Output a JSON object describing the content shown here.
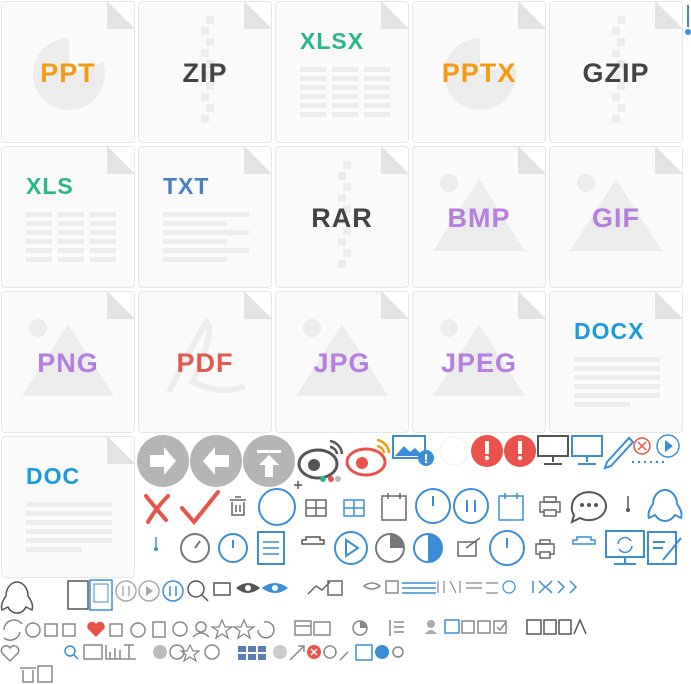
{
  "file_tiles": [
    {
      "label": "PPT",
      "color": "#f39c12",
      "art": "pie"
    },
    {
      "label": "ZIP",
      "color": "#444444",
      "art": "zip"
    },
    {
      "label": "XLSX",
      "color": "#2bb689",
      "art": "sheet"
    },
    {
      "label": "PPTX",
      "color": "#f39c12",
      "art": "pie"
    },
    {
      "label": "GZIP",
      "color": "#444444",
      "art": "zip"
    },
    {
      "label": "XLS",
      "color": "#2bb689",
      "art": "sheet"
    },
    {
      "label": "TXT",
      "color": "#4a7fc1",
      "art": "text"
    },
    {
      "label": "RAR",
      "color": "#444444",
      "art": "zip"
    },
    {
      "label": "BMP",
      "color": "#b57ee0",
      "art": "image"
    },
    {
      "label": "GIF",
      "color": "#b57ee0",
      "art": "image"
    },
    {
      "label": "PNG",
      "color": "#b57ee0",
      "art": "image"
    },
    {
      "label": "PDF",
      "color": "#e05a4f",
      "art": "pdf"
    },
    {
      "label": "JPG",
      "color": "#b57ee0",
      "art": "image"
    },
    {
      "label": "JPEG",
      "color": "#b57ee0",
      "art": "image"
    },
    {
      "label": "DOCX",
      "color": "#1a9be0",
      "art": "doc"
    },
    {
      "label": "DOC",
      "color": "#1a9be0",
      "art": "doc"
    }
  ],
  "colors": {
    "accent": "#3b8ed6",
    "gray": "#777777",
    "alert": "#e9534b",
    "pink": "#f07f7f"
  }
}
